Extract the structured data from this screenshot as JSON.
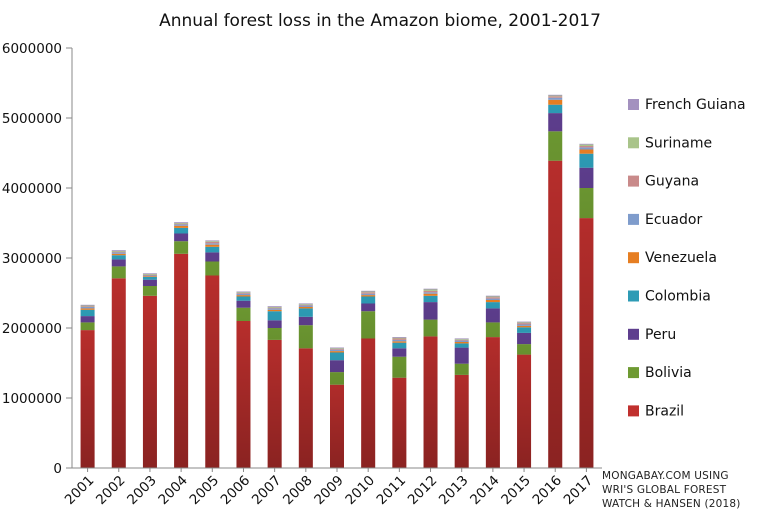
{
  "chart_data": {
    "type": "bar",
    "stacked": true,
    "title": "Annual forest loss in the Amazon biome, 2001-2017",
    "xlabel": "",
    "ylabel": "",
    "ylim": [
      0,
      6000000
    ],
    "yticks": [
      "0",
      "1000000",
      "2000000",
      "3000000",
      "4000000",
      "5000000",
      "6000000"
    ],
    "grid": false,
    "legend_position": "right",
    "categories": [
      "2001",
      "2002",
      "2003",
      "2004",
      "2005",
      "2006",
      "2007",
      "2008",
      "2009",
      "2010",
      "2011",
      "2012",
      "2013",
      "2014",
      "2015",
      "2016",
      "2017"
    ],
    "series": [
      {
        "name": "Brazil",
        "color": "#c0302e",
        "values": [
          1970000,
          2710000,
          2460000,
          3060000,
          2750000,
          2100000,
          1830000,
          1710000,
          1190000,
          1850000,
          1290000,
          1880000,
          1330000,
          1870000,
          1620000,
          4390000,
          3570000
        ]
      },
      {
        "name": "Bolivia",
        "color": "#6e9a32",
        "values": [
          110000,
          170000,
          140000,
          180000,
          200000,
          190000,
          170000,
          330000,
          180000,
          390000,
          300000,
          240000,
          160000,
          210000,
          150000,
          420000,
          430000
        ]
      },
      {
        "name": "Peru",
        "color": "#5e3e8e",
        "values": [
          90000,
          100000,
          90000,
          110000,
          130000,
          100000,
          110000,
          120000,
          170000,
          110000,
          120000,
          250000,
          230000,
          200000,
          160000,
          260000,
          290000
        ]
      },
      {
        "name": "Colombia",
        "color": "#2d9bb5",
        "values": [
          90000,
          60000,
          40000,
          80000,
          80000,
          60000,
          130000,
          120000,
          110000,
          100000,
          80000,
          90000,
          60000,
          90000,
          80000,
          120000,
          200000
        ]
      },
      {
        "name": "Venezuela",
        "color": "#e67e22",
        "values": [
          20000,
          20000,
          10000,
          30000,
          30000,
          20000,
          20000,
          20000,
          20000,
          20000,
          20000,
          30000,
          20000,
          30000,
          20000,
          70000,
          60000
        ]
      },
      {
        "name": "Ecuador",
        "color": "#7f9ccc",
        "values": [
          20000,
          20000,
          10000,
          20000,
          20000,
          20000,
          20000,
          20000,
          20000,
          20000,
          20000,
          20000,
          20000,
          20000,
          20000,
          30000,
          30000
        ]
      },
      {
        "name": "Guyana",
        "color": "#c98a8a",
        "values": [
          10000,
          10000,
          10000,
          10000,
          20000,
          10000,
          10000,
          10000,
          10000,
          20000,
          20000,
          20000,
          10000,
          20000,
          20000,
          20000,
          20000
        ]
      },
      {
        "name": "Suriname",
        "color": "#a9c48a",
        "values": [
          10000,
          10000,
          10000,
          10000,
          10000,
          10000,
          10000,
          10000,
          10000,
          10000,
          10000,
          20000,
          10000,
          10000,
          10000,
          10000,
          20000
        ]
      },
      {
        "name": "French Guiana",
        "color": "#a391bf",
        "values": [
          10000,
          10000,
          10000,
          10000,
          10000,
          10000,
          10000,
          10000,
          10000,
          10000,
          10000,
          10000,
          10000,
          10000,
          10000,
          10000,
          10000
        ]
      }
    ]
  },
  "credit": {
    "line1": "MONGABAY.COM USING",
    "line2": "WRI'S GLOBAL FOREST",
    "line3": "WATCH & HANSEN (2018)"
  }
}
